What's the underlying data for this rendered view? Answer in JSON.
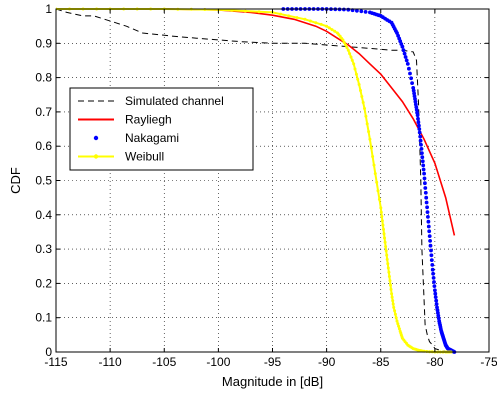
{
  "chart_data": {
    "type": "line",
    "title": "",
    "xlabel": "Magnitude in [dB]",
    "ylabel": "CDF",
    "xlim": [
      -115,
      -75
    ],
    "ylim": [
      0,
      1
    ],
    "xticks": [
      -115,
      -110,
      -105,
      -100,
      -95,
      -90,
      -85,
      -80,
      -75
    ],
    "yticks": [
      0,
      0.1,
      0.2,
      0.3,
      0.4,
      0.5,
      0.6,
      0.7,
      0.8,
      0.9,
      1
    ],
    "xtick_labels": [
      "-115",
      "-110",
      "-105",
      "-100",
      "-95",
      "-90",
      "-85",
      "-80",
      "-75"
    ],
    "ytick_labels": [
      "0",
      "0.1",
      "0.2",
      "0.3",
      "0.4",
      "0.5",
      "0.6",
      "0.7",
      "0.8",
      "0.9",
      "1"
    ],
    "grid": true,
    "legend_position": "middle-left",
    "series": [
      {
        "name": "Simulated channel",
        "color": "#000000",
        "style": "dashed",
        "x": [
          -115,
          -114,
          -112.5,
          -111.5,
          -110.5,
          -109.5,
          -108.5,
          -107,
          -105.5,
          -104,
          -102,
          -100,
          -98,
          -95,
          -92,
          -90,
          -88,
          -86,
          -84,
          -83,
          -82,
          -81.7,
          -81.5,
          -81.3,
          -81.2,
          -81.0,
          -80.9,
          -80.7,
          -80.5,
          -80.2,
          -80.0,
          -79.5,
          -78.8
        ],
        "y": [
          1.0,
          0.99,
          0.98,
          0.98,
          0.97,
          0.96,
          0.95,
          0.93,
          0.925,
          0.92,
          0.915,
          0.91,
          0.905,
          0.9,
          0.9,
          0.895,
          0.89,
          0.885,
          0.88,
          0.88,
          0.875,
          0.85,
          0.72,
          0.5,
          0.3,
          0.15,
          0.08,
          0.05,
          0.03,
          0.02,
          0.01,
          0.005,
          0.0
        ]
      },
      {
        "name": "Rayliegh",
        "color": "#ff0000",
        "style": "solid",
        "x": [
          -115,
          -110,
          -105,
          -100,
          -97,
          -95,
          -93,
          -91,
          -90,
          -89,
          -88,
          -87,
          -86,
          -85,
          -84,
          -83,
          -82,
          -81,
          -80,
          -79,
          -78.2
        ],
        "y": [
          1.0,
          1.0,
          1.0,
          0.997,
          0.99,
          0.982,
          0.97,
          0.95,
          0.935,
          0.915,
          0.895,
          0.87,
          0.84,
          0.81,
          0.77,
          0.73,
          0.68,
          0.62,
          0.55,
          0.45,
          0.34
        ]
      },
      {
        "name": "Nakagami",
        "color": "#0000ff",
        "style": "dots",
        "x": [
          -94,
          -92,
          -90,
          -88,
          -86,
          -85,
          -84,
          -83.5,
          -83,
          -82.5,
          -82,
          -81.8,
          -81.6,
          -81.4,
          -81.2,
          -81.0,
          -80.8,
          -80.6,
          -80.4,
          -80.2,
          -80.0,
          -79.8,
          -79.6,
          -79.4,
          -79.2,
          -79.0,
          -78.8,
          -78.5,
          -78.2
        ],
        "y": [
          1.0,
          1.0,
          1.0,
          0.998,
          0.99,
          0.98,
          0.96,
          0.93,
          0.89,
          0.84,
          0.77,
          0.73,
          0.69,
          0.64,
          0.58,
          0.52,
          0.45,
          0.38,
          0.31,
          0.24,
          0.18,
          0.13,
          0.09,
          0.06,
          0.04,
          0.02,
          0.01,
          0.005,
          0.0
        ]
      },
      {
        "name": "Weibull",
        "color": "#ffff00",
        "style": "solid-markers",
        "x": [
          -115,
          -110,
          -105,
          -100,
          -95,
          -92,
          -90,
          -89,
          -88.5,
          -88,
          -87.5,
          -87,
          -86.5,
          -86,
          -85.5,
          -85,
          -84.8,
          -84.6,
          -84.4,
          -84.2,
          -84.0,
          -83.8,
          -83.5,
          -83.2,
          -83.0,
          -82.5,
          -82,
          -81.5,
          -81,
          -80,
          -79,
          -78.5
        ],
        "y": [
          1.0,
          1.0,
          1.0,
          0.998,
          0.99,
          0.97,
          0.95,
          0.93,
          0.91,
          0.88,
          0.84,
          0.78,
          0.71,
          0.62,
          0.52,
          0.42,
          0.37,
          0.32,
          0.27,
          0.22,
          0.17,
          0.13,
          0.09,
          0.06,
          0.04,
          0.02,
          0.01,
          0.005,
          0.002,
          0.0,
          0.0,
          0.0
        ]
      }
    ]
  }
}
